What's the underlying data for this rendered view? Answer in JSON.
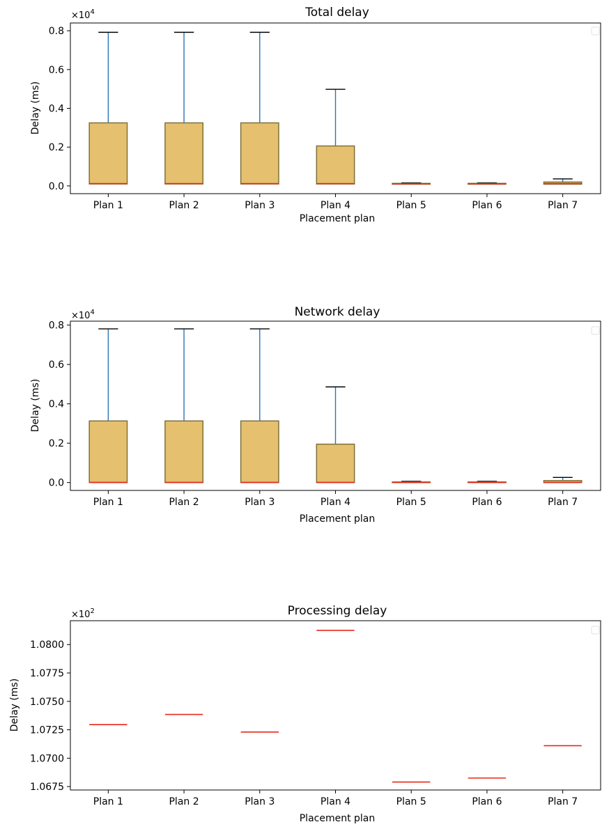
{
  "colors": {
    "box_fill": "#e5c06f",
    "box_edge": "#7f7138",
    "whisker": "#2a75b7",
    "median": "#e8281a",
    "cap": "#000000"
  },
  "chart_data": [
    {
      "type": "box",
      "title": "Total delay",
      "xlabel": "Placement plan",
      "ylabel": "Delay (ms)",
      "multiplier": "×10",
      "exponent": "4",
      "categories": [
        "Plan 1",
        "Plan 2",
        "Plan 3",
        "Plan 4",
        "Plan 5",
        "Plan 6",
        "Plan 7"
      ],
      "ylim": [
        -0.04,
        0.84
      ],
      "yticks": [
        0.0,
        0.2,
        0.4,
        0.6,
        0.8
      ],
      "ytick_labels": [
        "0.0",
        "0.2",
        "0.4",
        "0.6",
        "0.8"
      ],
      "grid": false,
      "boxes": [
        {
          "min": 0.008,
          "q1": 0.01,
          "median": 0.012,
          "q3": 0.325,
          "max": 0.792
        },
        {
          "min": 0.008,
          "q1": 0.01,
          "median": 0.012,
          "q3": 0.325,
          "max": 0.792
        },
        {
          "min": 0.008,
          "q1": 0.01,
          "median": 0.012,
          "q3": 0.325,
          "max": 0.792
        },
        {
          "min": 0.008,
          "q1": 0.01,
          "median": 0.012,
          "q3": 0.206,
          "max": 0.498
        },
        {
          "min": 0.007,
          "q1": 0.009,
          "median": 0.011,
          "q3": 0.013,
          "max": 0.016
        },
        {
          "min": 0.007,
          "q1": 0.009,
          "median": 0.011,
          "q3": 0.013,
          "max": 0.016
        },
        {
          "min": 0.008,
          "q1": 0.009,
          "median": 0.012,
          "q3": 0.02,
          "max": 0.036
        }
      ]
    },
    {
      "type": "box",
      "title": "Network delay",
      "xlabel": "Placement plan",
      "ylabel": "Delay (ms)",
      "multiplier": "×10",
      "exponent": "4",
      "categories": [
        "Plan 1",
        "Plan 2",
        "Plan 3",
        "Plan 4",
        "Plan 5",
        "Plan 6",
        "Plan 7"
      ],
      "ylim": [
        -0.04,
        0.82
      ],
      "yticks": [
        0.0,
        0.2,
        0.4,
        0.6,
        0.8
      ],
      "ytick_labels": [
        "0.0",
        "0.2",
        "0.4",
        "0.6",
        "0.8"
      ],
      "grid": false,
      "boxes": [
        {
          "min": 0.0,
          "q1": 0.0,
          "median": 0.001,
          "q3": 0.313,
          "max": 0.781
        },
        {
          "min": 0.0,
          "q1": 0.0,
          "median": 0.001,
          "q3": 0.313,
          "max": 0.781
        },
        {
          "min": 0.0,
          "q1": 0.0,
          "median": 0.001,
          "q3": 0.313,
          "max": 0.781
        },
        {
          "min": 0.0,
          "q1": 0.0,
          "median": 0.001,
          "q3": 0.195,
          "max": 0.486
        },
        {
          "min": 0.0,
          "q1": 0.0,
          "median": 0.001,
          "q3": 0.003,
          "max": 0.006
        },
        {
          "min": 0.0,
          "q1": 0.0,
          "median": 0.001,
          "q3": 0.003,
          "max": 0.006
        },
        {
          "min": 0.0,
          "q1": 0.0,
          "median": 0.001,
          "q3": 0.01,
          "max": 0.026
        }
      ]
    },
    {
      "type": "box",
      "title": "Processing delay",
      "xlabel": "Placement plan",
      "ylabel": "Delay (ms)",
      "multiplier": "×10",
      "exponent": "2",
      "categories": [
        "Plan 1",
        "Plan 2",
        "Plan 3",
        "Plan 4",
        "Plan 5",
        "Plan 6",
        "Plan 7"
      ],
      "ylim": [
        1.0672,
        1.0821
      ],
      "yticks": [
        1.0675,
        1.07,
        1.0725,
        1.075,
        1.0775,
        1.08
      ],
      "ytick_labels": [
        "1.0675",
        "1.0700",
        "1.0725",
        "1.0750",
        "1.0775",
        "1.0800"
      ],
      "grid": false,
      "boxes": [
        {
          "min": 1.07295,
          "q1": 1.07295,
          "median": 1.07295,
          "q3": 1.07295,
          "max": 1.07295
        },
        {
          "min": 1.07385,
          "q1": 1.07385,
          "median": 1.07385,
          "q3": 1.07385,
          "max": 1.07385
        },
        {
          "min": 1.0723,
          "q1": 1.0723,
          "median": 1.0723,
          "q3": 1.0723,
          "max": 1.0723
        },
        {
          "min": 1.08125,
          "q1": 1.08125,
          "median": 1.08125,
          "q3": 1.08125,
          "max": 1.08125
        },
        {
          "min": 1.0679,
          "q1": 1.0679,
          "median": 1.0679,
          "q3": 1.0679,
          "max": 1.0679
        },
        {
          "min": 1.06825,
          "q1": 1.06825,
          "median": 1.06825,
          "q3": 1.06825,
          "max": 1.06825
        },
        {
          "min": 1.0711,
          "q1": 1.0711,
          "median": 1.0711,
          "q3": 1.0711,
          "max": 1.0711
        }
      ]
    }
  ]
}
